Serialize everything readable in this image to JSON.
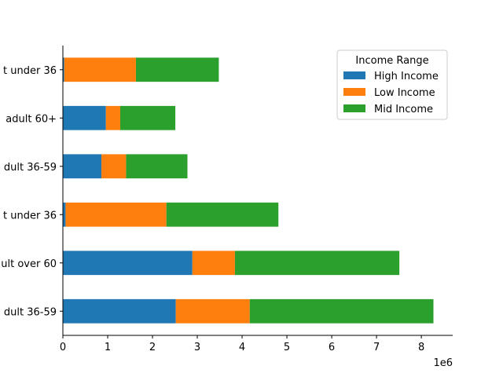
{
  "chart_data": {
    "type": "bar",
    "orientation": "horizontal",
    "stacked": true,
    "categories": [
      "dult 36-59",
      "ult over 60",
      "t under 36",
      "dult 36-59",
      "adult 60+",
      "t under 36"
    ],
    "series": [
      {
        "name": "High Income",
        "color": "#1f77b4",
        "values": [
          2520000,
          2890000,
          60000,
          860000,
          960000,
          30000
        ]
      },
      {
        "name": "Low Income",
        "color": "#ff7f0e",
        "values": [
          1650000,
          950000,
          2250000,
          550000,
          320000,
          1600000
        ]
      },
      {
        "name": "Mid Income",
        "color": "#2ca02c",
        "values": [
          4100000,
          3670000,
          2500000,
          1370000,
          1230000,
          1850000
        ]
      }
    ],
    "xlim": [
      0,
      8700000
    ],
    "xticks": [
      0,
      1000000,
      2000000,
      3000000,
      4000000,
      5000000,
      6000000,
      7000000,
      8000000
    ],
    "xtick_labels": [
      "0",
      "1",
      "2",
      "3",
      "4",
      "5",
      "6",
      "7",
      "8"
    ],
    "x_offset_text": "1e6",
    "legend_title": "Income Range",
    "legend_position": "top-right",
    "grid": false
  }
}
